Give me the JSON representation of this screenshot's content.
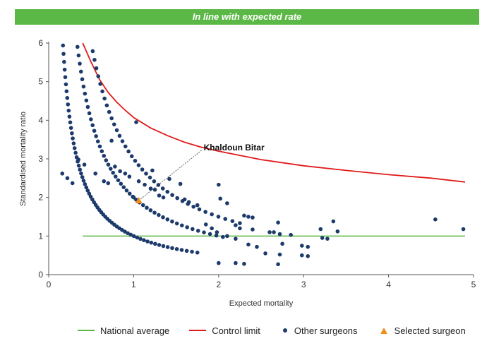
{
  "chart_data": {
    "type": "scatter",
    "title": "In line with expected rate",
    "xlabel": "Expected mortality",
    "ylabel": "Standardised mortality ratio",
    "xlim": [
      0,
      5
    ],
    "ylim": [
      0,
      6
    ],
    "xticks": [
      "0",
      "1",
      "2",
      "3",
      "4",
      "5"
    ],
    "yticks": [
      "0",
      "1",
      "2",
      "3",
      "4",
      "5",
      "6"
    ],
    "grid": false,
    "legend_position": "bottom",
    "colors": {
      "banner": "#5cb846",
      "national_average": "#5cb846",
      "control_limit": "#e11a1a",
      "other_surgeons": "#1c3a6b",
      "selected_surgeon": "#f0901c"
    },
    "national_average": {
      "name": "National average",
      "y": 1.0,
      "x_range": [
        0.4,
        4.9
      ]
    },
    "control_limit": {
      "name": "Control limit",
      "points": [
        [
          0.4,
          6.0
        ],
        [
          0.5,
          5.5
        ],
        [
          0.6,
          5.05
        ],
        [
          0.7,
          4.72
        ],
        [
          0.8,
          4.47
        ],
        [
          0.9,
          4.26
        ],
        [
          1.0,
          4.07
        ],
        [
          1.2,
          3.8
        ],
        [
          1.4,
          3.6
        ],
        [
          1.6,
          3.43
        ],
        [
          1.8,
          3.3
        ],
        [
          2.0,
          3.2
        ],
        [
          2.5,
          2.98
        ],
        [
          3.0,
          2.82
        ],
        [
          3.5,
          2.7
        ],
        [
          4.0,
          2.59
        ],
        [
          4.5,
          2.5
        ],
        [
          4.9,
          2.4
        ]
      ]
    },
    "other_surgeons": {
      "name": "Other surgeons",
      "bands": [
        {
          "smr_times_expected": 1,
          "x_from": 0.01,
          "x_to": 1.75,
          "count": 140
        },
        {
          "smr_times_expected": 2,
          "x_from": 0.01,
          "x_to": 2.05,
          "count": 140
        },
        {
          "smr_times_expected": 3,
          "x_from": 0.02,
          "x_to": 2.25,
          "count": 120
        }
      ],
      "points": [
        [
          0.16,
          2.62
        ],
        [
          0.22,
          2.5
        ],
        [
          0.28,
          2.37
        ],
        [
          0.35,
          2.98
        ],
        [
          0.42,
          2.85
        ],
        [
          0.55,
          2.62
        ],
        [
          0.65,
          2.42
        ],
        [
          0.7,
          2.37
        ],
        [
          0.78,
          2.8
        ],
        [
          0.84,
          2.68
        ],
        [
          0.9,
          2.62
        ],
        [
          0.95,
          2.54
        ],
        [
          1.0,
          2.0
        ],
        [
          1.06,
          2.42
        ],
        [
          1.13,
          2.33
        ],
        [
          1.2,
          2.23
        ],
        [
          1.25,
          2.2
        ],
        [
          1.3,
          2.05
        ],
        [
          1.35,
          2.0
        ],
        [
          1.22,
          2.7
        ],
        [
          1.42,
          2.48
        ],
        [
          1.55,
          2.35
        ],
        [
          1.6,
          1.95
        ],
        [
          1.65,
          1.88
        ],
        [
          1.75,
          1.8
        ],
        [
          0.74,
          3.47
        ],
        [
          1.03,
          3.95
        ],
        [
          1.85,
          1.3
        ],
        [
          1.92,
          1.2
        ],
        [
          1.98,
          1.1
        ],
        [
          2.0,
          2.33
        ],
        [
          2.02,
          1.97
        ],
        [
          2.1,
          1.85
        ],
        [
          2.2,
          1.28
        ],
        [
          2.25,
          1.2
        ],
        [
          2.3,
          1.53
        ],
        [
          2.35,
          1.5
        ],
        [
          2.4,
          1.48
        ],
        [
          2.4,
          1.17
        ],
        [
          2.1,
          1.0
        ],
        [
          2.2,
          0.93
        ],
        [
          2.35,
          0.78
        ],
        [
          2.45,
          0.72
        ],
        [
          2.55,
          0.55
        ],
        [
          2.6,
          1.1
        ],
        [
          2.65,
          1.1
        ],
        [
          2.7,
          1.35
        ],
        [
          2.72,
          1.05
        ],
        [
          2.75,
          0.8
        ],
        [
          2.72,
          0.52
        ],
        [
          2.85,
          1.03
        ],
        [
          2.7,
          0.27
        ],
        [
          2.0,
          0.3
        ],
        [
          2.2,
          0.3
        ],
        [
          2.3,
          0.28
        ],
        [
          2.98,
          0.75
        ],
        [
          3.05,
          0.72
        ],
        [
          2.98,
          0.5
        ],
        [
          3.05,
          0.48
        ],
        [
          3.2,
          1.18
        ],
        [
          3.22,
          0.95
        ],
        [
          3.28,
          0.93
        ],
        [
          3.35,
          1.38
        ],
        [
          3.4,
          1.12
        ],
        [
          4.55,
          1.43
        ],
        [
          4.88,
          1.18
        ]
      ]
    },
    "selected_surgeon": {
      "name": "Selected surgeon",
      "label": "Khaldoun Bitar",
      "x": 1.06,
      "y": 1.92
    }
  }
}
